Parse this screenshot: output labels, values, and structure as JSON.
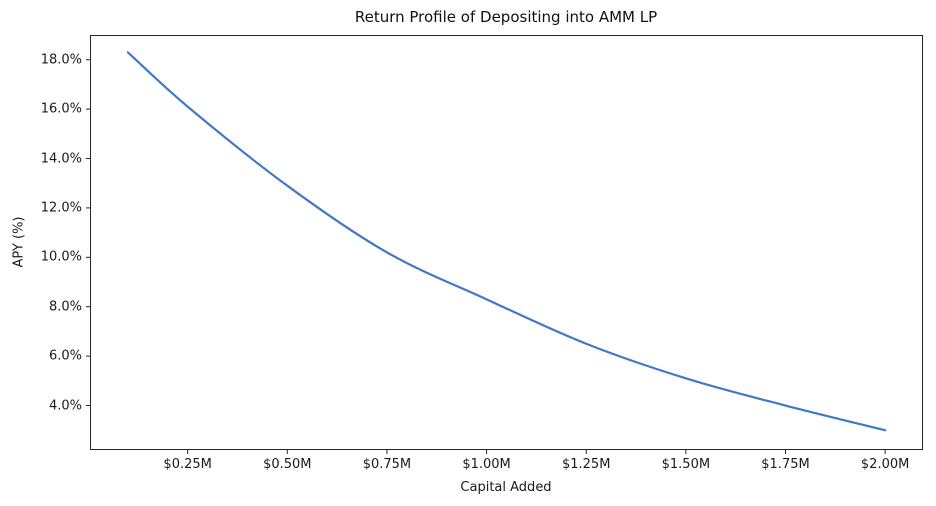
{
  "chart_data": {
    "type": "line",
    "title": "Return Profile of Depositing into AMM LP",
    "xlabel": "Capital Added",
    "ylabel": "APY (%)",
    "x": [
      0.1,
      0.25,
      0.5,
      0.75,
      1.0,
      1.25,
      1.5,
      1.75,
      2.0
    ],
    "y": [
      18.3,
      16.1,
      12.9,
      10.2,
      8.3,
      6.5,
      5.1,
      4.0,
      3.0
    ],
    "x_tick_values": [
      0.25,
      0.5,
      0.75,
      1.0,
      1.25,
      1.5,
      1.75,
      2.0
    ],
    "x_tick_labels": [
      "$0.25M",
      "$0.50M",
      "$0.75M",
      "$1.00M",
      "$1.25M",
      "$1.50M",
      "$1.75M",
      "$2.00M"
    ],
    "y_tick_values": [
      4,
      6,
      8,
      10,
      12,
      14,
      16,
      18
    ],
    "y_tick_labels": [
      "4.0%",
      "6.0%",
      "8.0%",
      "10.0%",
      "12.0%",
      "14.0%",
      "16.0%",
      "18.0%"
    ],
    "xlim": [
      0.005,
      2.095
    ],
    "ylim": [
      2.2,
      19.0
    ],
    "grid": false,
    "legend": false,
    "line_color": "#4179c4",
    "axis_color": "#262626",
    "tick_color": "#262626",
    "text_color": "#1a1a1a",
    "background": "#ffffff"
  }
}
